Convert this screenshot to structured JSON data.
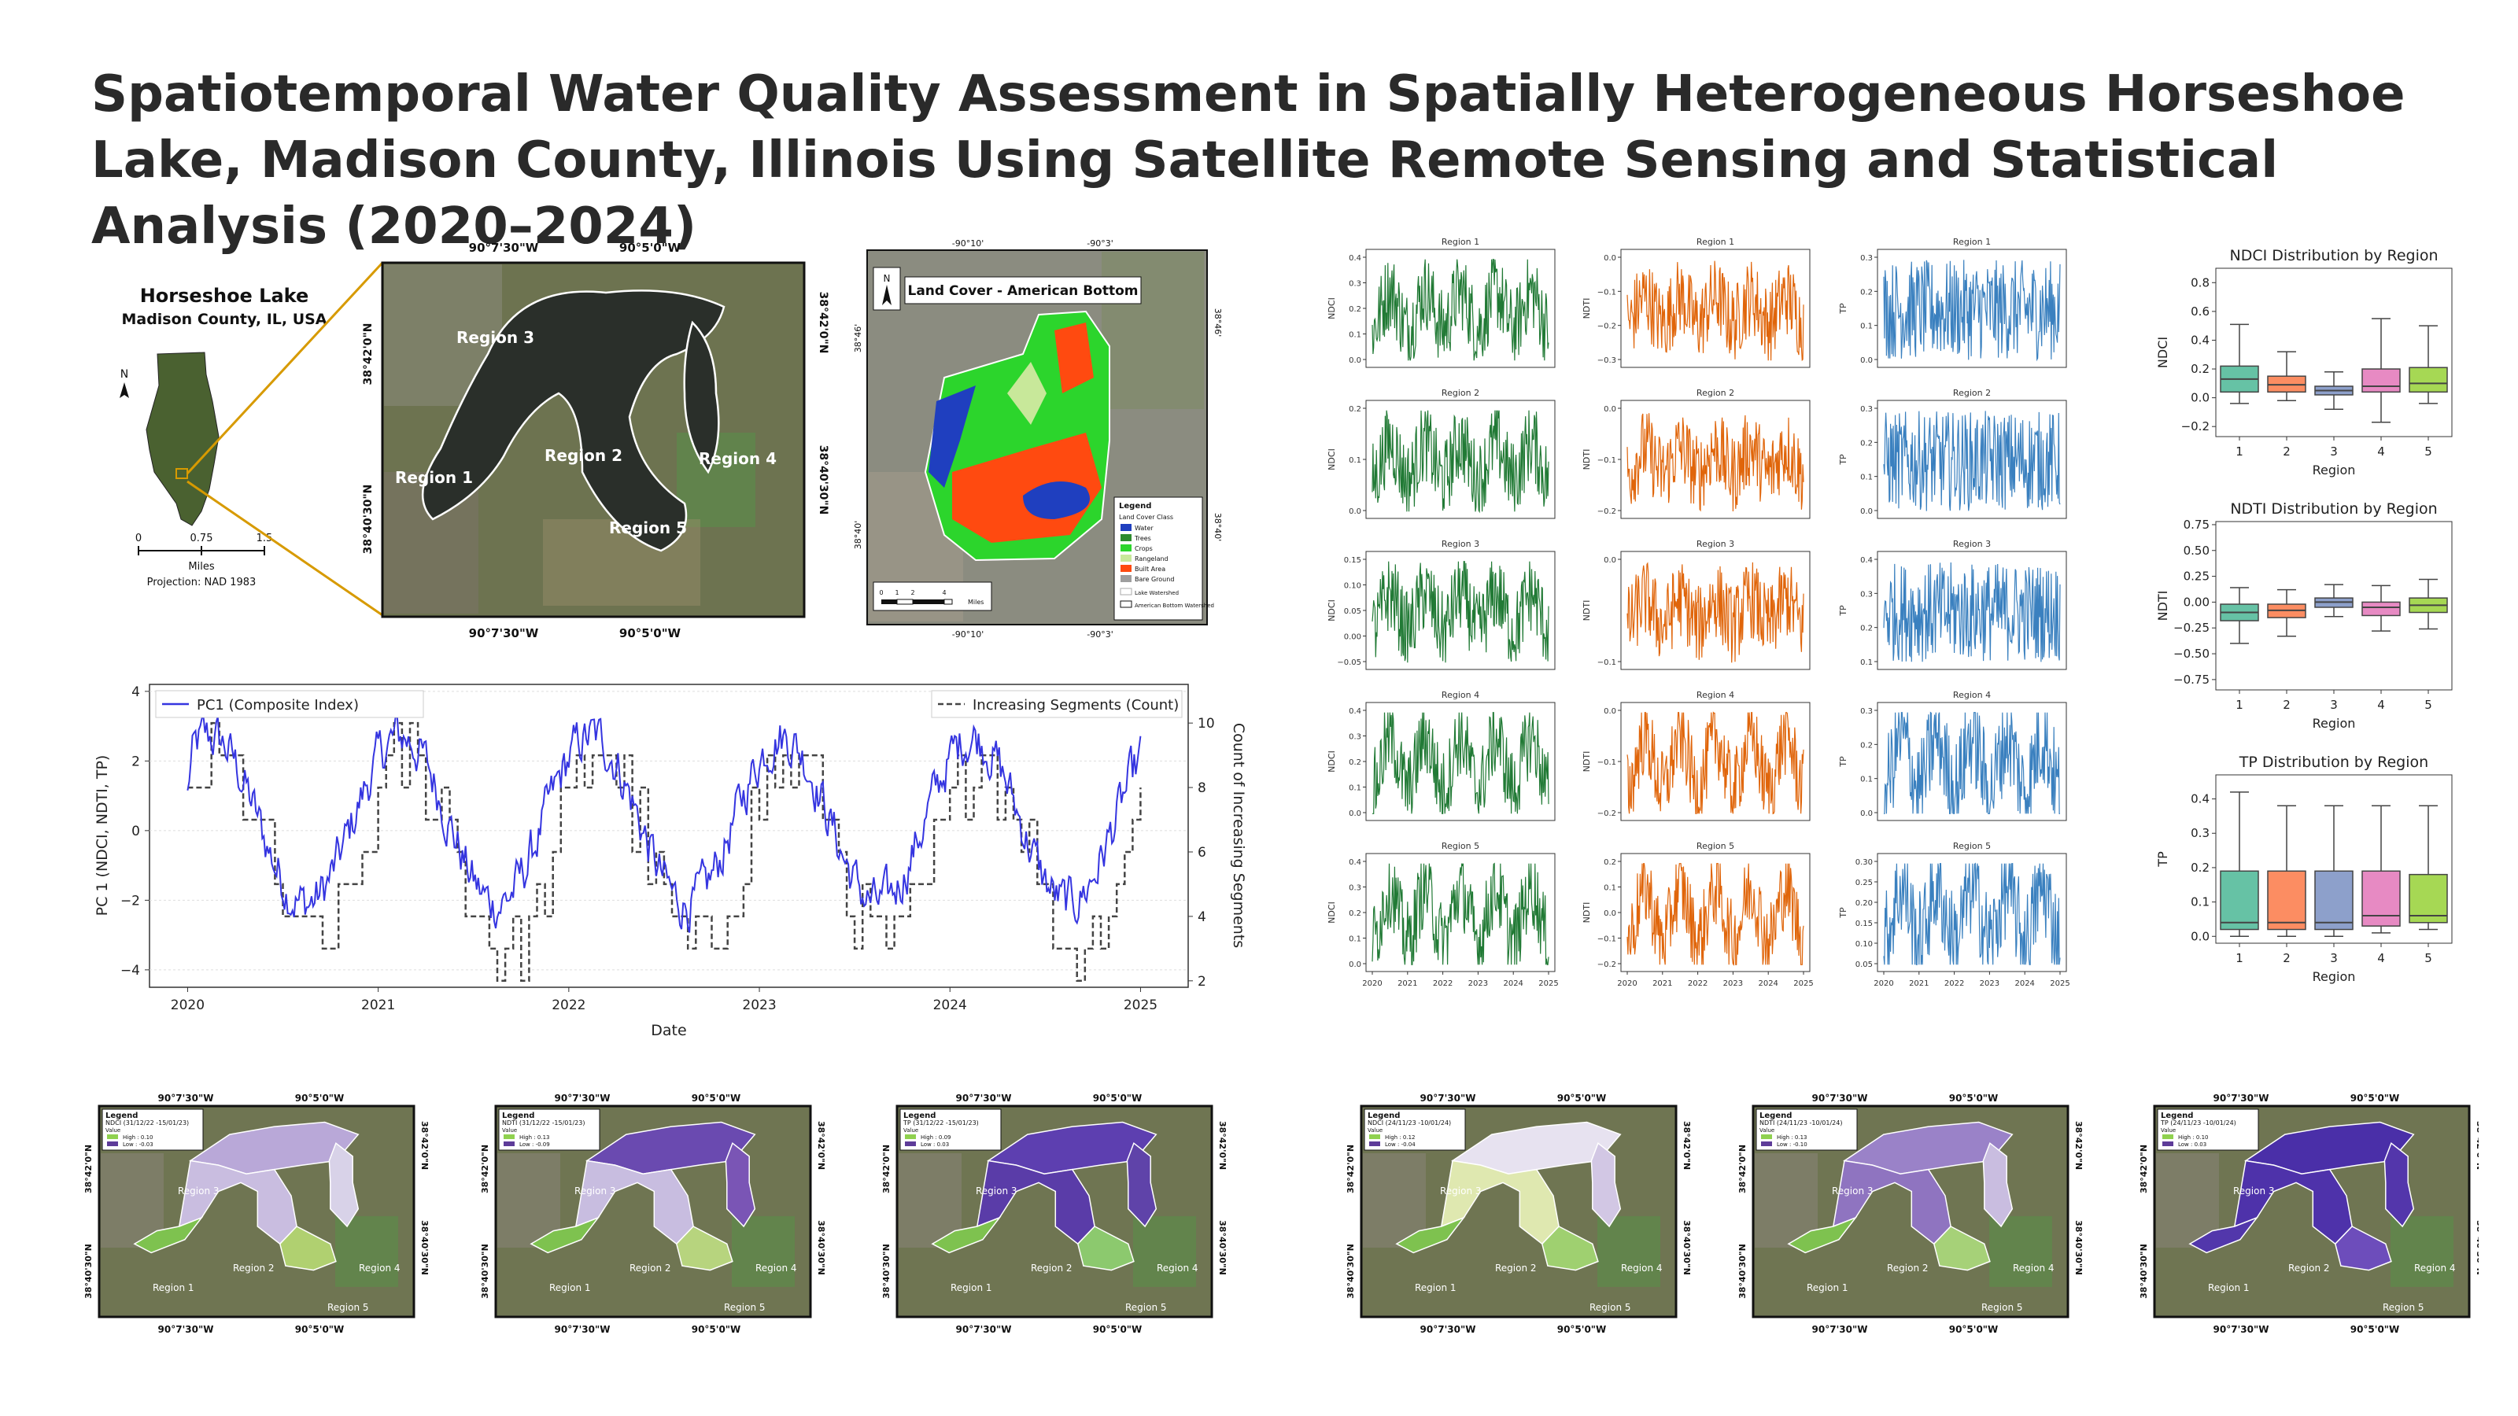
{
  "title": "Spatiotemporal Water Quality Assessment in Spatially Heterogeneous Horseshoe Lake, Madison County, Illinois Using Satellite Remote Sensing and Statistical Analysis (2020–2024)",
  "colors": {
    "ndci": "#217a35",
    "ndti": "#e0650a",
    "tp": "#3a80bf",
    "pc1": "#3535e0",
    "seg": "#444444",
    "lake_high": "#8fd14f",
    "lake_low": "#5e3c99"
  },
  "locator": {
    "title": "Horseshoe Lake",
    "subtitle": "Madison County, IL, USA",
    "north": "N",
    "scale_ticks": [
      "0",
      "0.75",
      "1.5"
    ],
    "scale_unit": "Miles",
    "projection": "Projection: NAD 1983"
  },
  "study_map": {
    "top_ticks": [
      "90°7'30\"W",
      "90°5'0\"W"
    ],
    "bottom_ticks": [
      "90°7'30\"W",
      "90°5'0\"W"
    ],
    "left_ticks": [
      "38°42'0\"N",
      "38°40'30\"N"
    ],
    "right_ticks": [
      "38°42'0\"N",
      "38°40'30\"N"
    ],
    "regions": [
      "Region 1",
      "Region 2",
      "Region 3",
      "Region 4",
      "Region 5"
    ]
  },
  "landcover": {
    "title": "Land Cover - American Bottom",
    "north": "N",
    "top_ticks": [
      "-90°10'",
      "-90°3'"
    ],
    "bottom_ticks": [
      "-90°10'",
      "-90°3'"
    ],
    "left_ticks": [
      "38°46'",
      "38°40'"
    ],
    "right_ticks": [
      "38°46'",
      "38°40'"
    ],
    "scale_ticks": [
      "0",
      "1",
      "2",
      "4"
    ],
    "scale_unit": "Miles",
    "legend_title": "Legend",
    "legend_sub": "Land Cover Class",
    "legend": [
      {
        "label": "Water",
        "color": "#1f3fbf"
      },
      {
        "label": "Trees",
        "color": "#2e8b2e"
      },
      {
        "label": "Crops",
        "color": "#2cd52c"
      },
      {
        "label": "Rangeland",
        "color": "#c8e89a"
      },
      {
        "label": "Built Area",
        "color": "#ff4a10"
      },
      {
        "label": "Bare Ground",
        "color": "#9e9e9e"
      }
    ],
    "outline_legend": [
      "Lake Watershed",
      "American Bottom Watershed"
    ]
  },
  "pca": {
    "legend_pc1": "PC1 (Composite Index)",
    "legend_seg": "Increasing Segments (Count)",
    "xlabel": "Date",
    "ylabel_left": "PC 1 (NDCI, NDTI, TP)",
    "ylabel_right": "Count of Increasing Segments",
    "x_ticks": [
      "2020",
      "2021",
      "2022",
      "2023",
      "2024",
      "2025"
    ],
    "y_left_ticks": [
      "4",
      "2",
      "0",
      "−2",
      "−4"
    ],
    "y_right_ticks": [
      "10",
      "8",
      "6",
      "4",
      "2"
    ]
  },
  "ts": {
    "region_titles": [
      "Region 1",
      "Region 2",
      "Region 3",
      "Region 4",
      "Region 5"
    ],
    "col_labels": [
      "NDCI",
      "NDTI",
      "TP"
    ],
    "x_ticks": [
      "2020",
      "2021",
      "2022",
      "2023",
      "2024",
      "2025"
    ],
    "yticks": [
      [
        [
          "0.4",
          "0.3",
          "0.2",
          "0.1",
          "0.0"
        ],
        [
          "0.0",
          "−0.1",
          "−0.2",
          "−0.3"
        ],
        [
          "0.3",
          "0.2",
          "0.1",
          "0.0"
        ]
      ],
      [
        [
          "0.2",
          "0.1",
          "0.0"
        ],
        [
          "0.0",
          "−0.1",
          "−0.2"
        ],
        [
          "0.3",
          "0.2",
          "0.1",
          "0.0"
        ]
      ],
      [
        [
          "0.15",
          "0.10",
          "0.05",
          "0.00",
          "−0.05"
        ],
        [
          "0.0",
          "−0.1"
        ],
        [
          "0.4",
          "0.3",
          "0.2",
          "0.1"
        ]
      ],
      [
        [
          "0.4",
          "0.3",
          "0.2",
          "0.1",
          "0.0"
        ],
        [
          "0.0",
          "−0.1",
          "−0.2"
        ],
        [
          "0.3",
          "0.2",
          "0.1",
          "0.0"
        ]
      ],
      [
        [
          "0.4",
          "0.3",
          "0.2",
          "0.1",
          "0.0"
        ],
        [
          "0.2",
          "0.1",
          "0.0",
          "−0.1",
          "−0.2"
        ],
        [
          "0.30",
          "0.25",
          "0.20",
          "0.15",
          "0.10",
          "0.05"
        ]
      ]
    ]
  },
  "boxplots": [
    {
      "title": "NDCI Distribution by Region",
      "ylabel": "NDCI",
      "xlabel": "Region",
      "categories": [
        "1",
        "2",
        "3",
        "4",
        "5"
      ],
      "yticks": [
        "0.8",
        "0.6",
        "0.4",
        "0.2",
        "0.0",
        "−0.2"
      ],
      "ylim": [
        -0.27,
        0.9
      ]
    },
    {
      "title": "NDTI Distribution by Region",
      "ylabel": "NDTI",
      "xlabel": "Region",
      "categories": [
        "1",
        "2",
        "3",
        "4",
        "5"
      ],
      "yticks": [
        "0.75",
        "0.50",
        "0.25",
        "0.00",
        "−0.25",
        "−0.50",
        "−0.75"
      ],
      "ylim": [
        -0.85,
        0.78
      ]
    },
    {
      "title": "TP Distribution by Region",
      "ylabel": "TP",
      "xlabel": "Region",
      "categories": [
        "1",
        "2",
        "3",
        "4",
        "5"
      ],
      "yticks": [
        "0.4",
        "0.3",
        "0.2",
        "0.1",
        "0.0"
      ],
      "ylim": [
        -0.02,
        0.47
      ]
    }
  ],
  "mini_maps": [
    {
      "legend_title": "Legend",
      "legend_line": "NDCI (31/12/22 -15/01/23)",
      "value": "Value",
      "high": "High : 0.10",
      "low": "Low : -0.03"
    },
    {
      "legend_title": "Legend",
      "legend_line": "NDTI (31/12/22 -15/01/23)",
      "value": "Value",
      "high": "High : 0.13",
      "low": "Low : -0.09"
    },
    {
      "legend_title": "Legend",
      "legend_line": "TP (31/12/22 -15/01/23)",
      "value": "Value",
      "high": "High : 0.09",
      "low": "Low : 0.03"
    },
    {
      "legend_title": "Legend",
      "legend_line": "NDCI (24/11/23 -10/01/24)",
      "value": "Value",
      "high": "High : 0.12",
      "low": "Low : -0.04"
    },
    {
      "legend_title": "Legend",
      "legend_line": "NDTI (24/11/23 -10/01/24)",
      "value": "Value",
      "high": "High : 0.13",
      "low": "Low : -0.10"
    },
    {
      "legend_title": "Legend",
      "legend_line": "TP (24/11/23 -10/01/24)",
      "value": "Value",
      "high": "High : 0.10",
      "low": "Low : 0.03"
    }
  ],
  "chart_data": [
    {
      "type": "line",
      "title": "",
      "xlabel": "Date",
      "ylabel": "PC 1 (NDCI, NDTI, TP)",
      "x_range": [
        "2020",
        "2025"
      ],
      "ylim": [
        -4.5,
        4.2
      ],
      "y2lim": [
        1.8,
        11.2
      ],
      "series": [
        {
          "name": "PC1 (Composite Index)",
          "axis": "left"
        },
        {
          "name": "Increasing Segments (Count)",
          "axis": "right"
        }
      ],
      "legend": "top"
    },
    {
      "type": "line",
      "title": "",
      "panels": "5 regions × (NDCI, NDTI, TP)",
      "x_range": [
        "2020",
        "2025"
      ]
    },
    {
      "type": "box",
      "title": "NDCI Distribution by Region",
      "categories": [
        "1",
        "2",
        "3",
        "4",
        "5"
      ],
      "values": [
        {
          "q1": 0.04,
          "med": 0.13,
          "q3": 0.22,
          "lo": -0.04,
          "hi": 0.51
        },
        {
          "q1": 0.04,
          "med": 0.09,
          "q3": 0.15,
          "lo": -0.02,
          "hi": 0.32
        },
        {
          "q1": 0.02,
          "med": 0.05,
          "q3": 0.08,
          "lo": -0.08,
          "hi": 0.18
        },
        {
          "q1": 0.04,
          "med": 0.08,
          "q3": 0.2,
          "lo": -0.17,
          "hi": 0.55
        },
        {
          "q1": 0.04,
          "med": 0.1,
          "q3": 0.21,
          "lo": -0.04,
          "hi": 0.5
        }
      ]
    },
    {
      "type": "box",
      "title": "NDTI Distribution by Region",
      "categories": [
        "1",
        "2",
        "3",
        "4",
        "5"
      ],
      "values": [
        {
          "q1": -0.18,
          "med": -0.1,
          "q3": -0.02,
          "lo": -0.4,
          "hi": 0.14
        },
        {
          "q1": -0.15,
          "med": -0.08,
          "q3": -0.02,
          "lo": -0.33,
          "hi": 0.12
        },
        {
          "q1": -0.05,
          "med": 0.0,
          "q3": 0.04,
          "lo": -0.14,
          "hi": 0.17
        },
        {
          "q1": -0.13,
          "med": -0.05,
          "q3": 0.0,
          "lo": -0.28,
          "hi": 0.16
        },
        {
          "q1": -0.1,
          "med": -0.03,
          "q3": 0.04,
          "lo": -0.26,
          "hi": 0.22
        }
      ]
    },
    {
      "type": "box",
      "title": "TP Distribution by Region",
      "categories": [
        "1",
        "2",
        "3",
        "4",
        "5"
      ],
      "values": [
        {
          "q1": 0.02,
          "med": 0.04,
          "q3": 0.19,
          "lo": 0.0,
          "hi": 0.42
        },
        {
          "q1": 0.02,
          "med": 0.04,
          "q3": 0.19,
          "lo": 0.0,
          "hi": 0.38
        },
        {
          "q1": 0.02,
          "med": 0.04,
          "q3": 0.19,
          "lo": 0.0,
          "hi": 0.38
        },
        {
          "q1": 0.03,
          "med": 0.06,
          "q3": 0.19,
          "lo": 0.01,
          "hi": 0.38
        },
        {
          "q1": 0.04,
          "med": 0.06,
          "q3": 0.18,
          "lo": 0.02,
          "hi": 0.38
        }
      ]
    }
  ]
}
